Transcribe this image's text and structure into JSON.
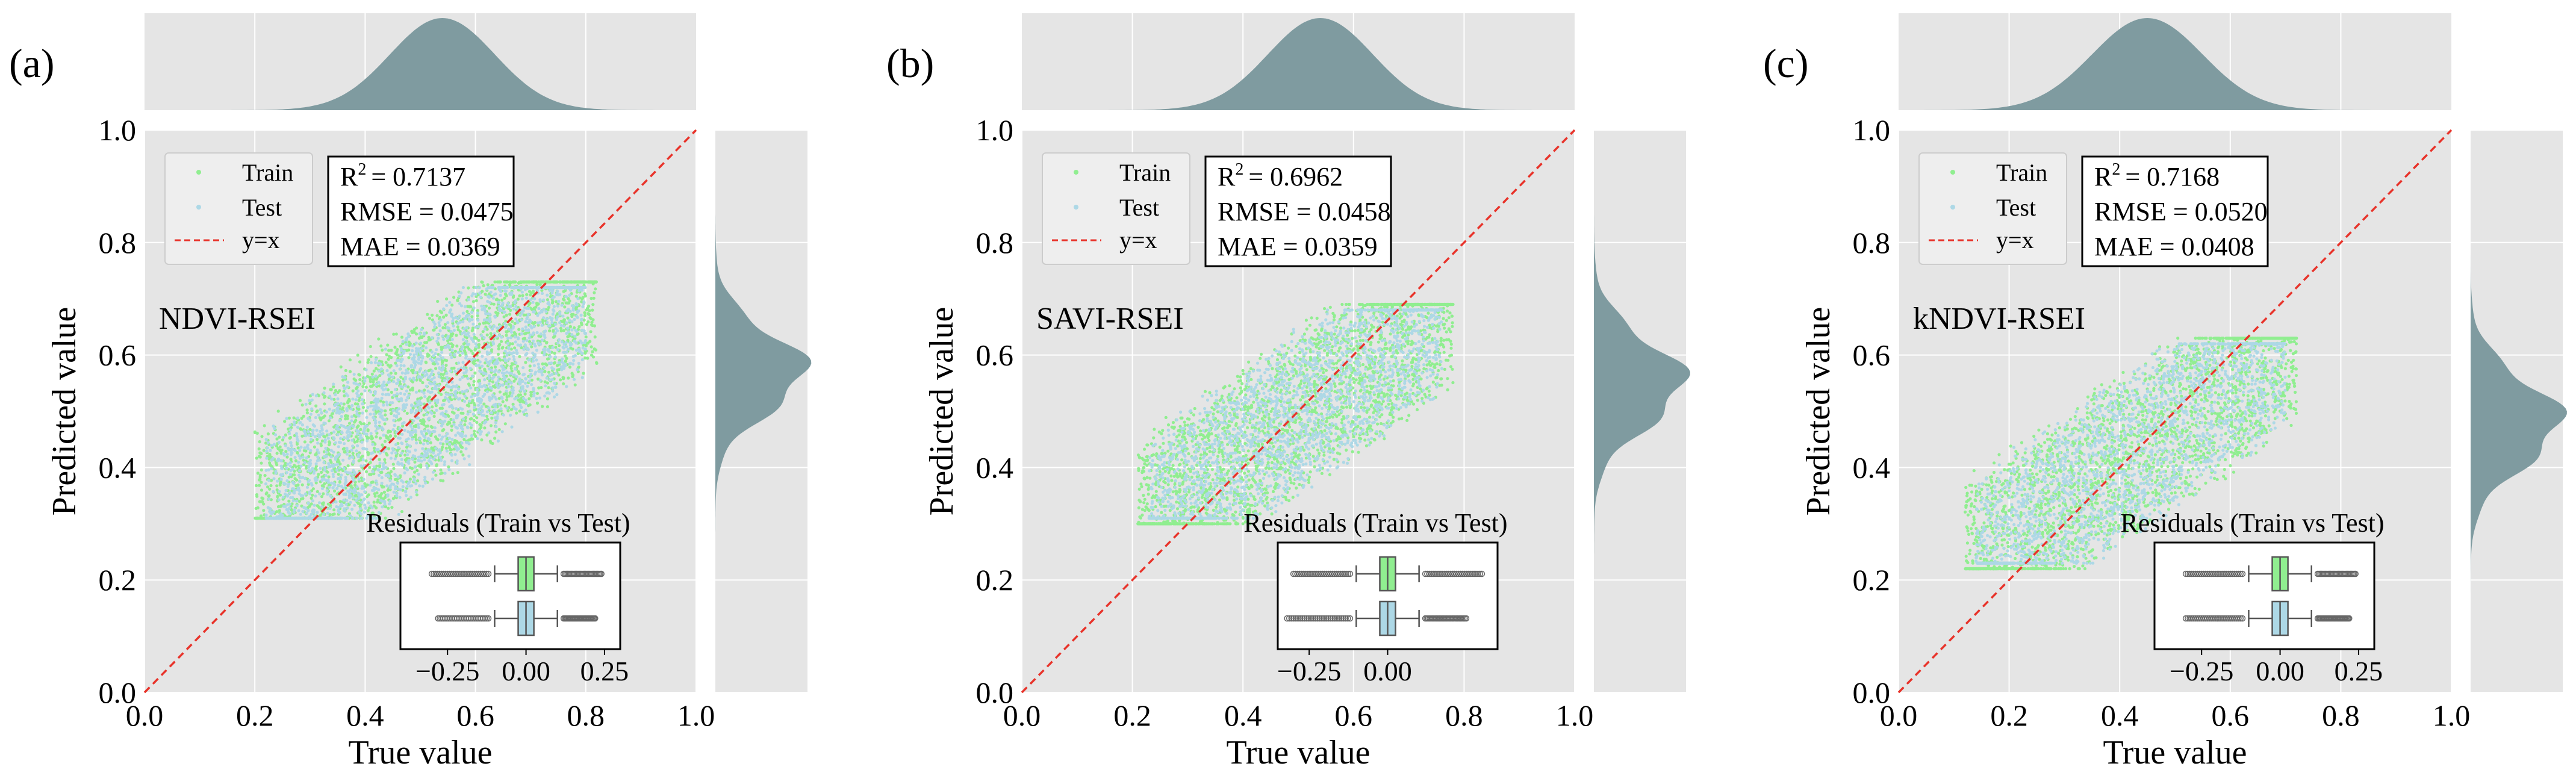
{
  "colors": {
    "plot_background": "#e5e5e5",
    "grid": "#ffffff",
    "train_points": "#90ee90",
    "test_points": "#add8e6",
    "identity_line": "#e8332a",
    "density_fill": "#7f9ba0",
    "box_train": "#90ee90",
    "box_test": "#add8e6",
    "box_edge": "#555555"
  },
  "legend": {
    "train": "Train",
    "test": "Test",
    "identity": "y=x"
  },
  "chart_data": [
    {
      "type": "scatter",
      "panel_label": "(a)",
      "name": "NDVI-RSEI",
      "xlabel": "True value",
      "ylabel": "Predicted value",
      "xlim": [
        0.0,
        1.0
      ],
      "ylim": [
        0.0,
        1.0
      ],
      "xticks": [
        "0.0",
        "0.2",
        "0.4",
        "0.6",
        "0.8",
        "1.0"
      ],
      "yticks": [
        "0.0",
        "0.2",
        "0.4",
        "0.6",
        "0.8",
        "1.0"
      ],
      "grid": true,
      "series": [
        {
          "name": "Train",
          "true_range": [
            0.2,
            0.82
          ],
          "pred_range": [
            0.31,
            0.73
          ]
        },
        {
          "name": "Test",
          "true_range": [
            0.22,
            0.8
          ],
          "pred_range": [
            0.31,
            0.72
          ]
        },
        {
          "name": "y=x",
          "x": [
            0.0,
            1.0
          ],
          "y": [
            0.0,
            1.0
          ]
        }
      ],
      "stats": {
        "r2_label": "R",
        "r2_value": "= 0.7137",
        "rmse": "RMSE = 0.0475",
        "mae": "MAE = 0.0369"
      },
      "top_density": {
        "peak": 0.54,
        "spread": 0.095
      },
      "right_density": {
        "peak": 0.57,
        "spread": 0.07
      },
      "residuals": {
        "title": "Residuals (Train vs Test)",
        "xlim": [
          -0.4,
          0.3
        ],
        "xticks": [
          "-0.25",
          "0.00",
          "0.25"
        ],
        "xtick_values": [
          -0.25,
          0.0,
          0.25
        ],
        "boxes": [
          {
            "name": "Train",
            "q1": -0.025,
            "median": 0.0,
            "q3": 0.025,
            "whisker_low": -0.1,
            "whisker_high": 0.1,
            "outlier_low": -0.3,
            "outlier_high": 0.24
          },
          {
            "name": "Test",
            "q1": -0.025,
            "median": 0.0,
            "q3": 0.025,
            "whisker_low": -0.1,
            "whisker_high": 0.1,
            "outlier_low": -0.28,
            "outlier_high": 0.22
          }
        ]
      }
    },
    {
      "type": "scatter",
      "panel_label": "(b)",
      "name": "SAVI-RSEI",
      "xlabel": "True value",
      "ylabel": "Predicted value",
      "xlim": [
        0.0,
        1.0
      ],
      "ylim": [
        0.0,
        1.0
      ],
      "xticks": [
        "0.0",
        "0.2",
        "0.4",
        "0.6",
        "0.8",
        "1.0"
      ],
      "yticks": [
        "0.0",
        "0.2",
        "0.4",
        "0.6",
        "0.8",
        "1.0"
      ],
      "grid": true,
      "series": [
        {
          "name": "Train",
          "true_range": [
            0.21,
            0.78
          ],
          "pred_range": [
            0.3,
            0.69
          ]
        },
        {
          "name": "Test",
          "true_range": [
            0.23,
            0.76
          ],
          "pred_range": [
            0.31,
            0.68
          ]
        },
        {
          "name": "y=x",
          "x": [
            0.0,
            1.0
          ],
          "y": [
            0.0,
            1.0
          ]
        }
      ],
      "stats": {
        "r2_label": "R",
        "r2_value": "= 0.6962",
        "rmse": "RMSE = 0.0458",
        "mae": "MAE = 0.0359"
      },
      "top_density": {
        "peak": 0.54,
        "spread": 0.095
      },
      "right_density": {
        "peak": 0.55,
        "spread": 0.075
      },
      "residuals": {
        "title": "Residuals (Train vs Test)",
        "xlim": [
          -0.35,
          0.35
        ],
        "xticks": [
          "-0.25",
          "0.00"
        ],
        "xtick_values": [
          -0.25,
          0.0
        ],
        "boxes": [
          {
            "name": "Train",
            "q1": -0.025,
            "median": 0.0,
            "q3": 0.025,
            "whisker_low": -0.1,
            "whisker_high": 0.1,
            "outlier_low": -0.3,
            "outlier_high": 0.3
          },
          {
            "name": "Test",
            "q1": -0.025,
            "median": 0.0,
            "q3": 0.025,
            "whisker_low": -0.1,
            "whisker_high": 0.1,
            "outlier_low": -0.32,
            "outlier_high": 0.25
          }
        ]
      }
    },
    {
      "type": "scatter",
      "panel_label": "(c)",
      "name": "kNDVI-RSEI",
      "xlabel": "True value",
      "ylabel": "Predicted value",
      "xlim": [
        0.0,
        1.0
      ],
      "ylim": [
        0.0,
        1.0
      ],
      "xticks": [
        "0.0",
        "0.2",
        "0.4",
        "0.6",
        "0.8",
        "1.0"
      ],
      "yticks": [
        "0.0",
        "0.2",
        "0.4",
        "0.6",
        "0.8",
        "1.0"
      ],
      "grid": true,
      "series": [
        {
          "name": "Train",
          "true_range": [
            0.12,
            0.72
          ],
          "pred_range": [
            0.22,
            0.63
          ]
        },
        {
          "name": "Test",
          "true_range": [
            0.14,
            0.7
          ],
          "pred_range": [
            0.23,
            0.62
          ]
        },
        {
          "name": "y=x",
          "x": [
            0.0,
            1.0
          ],
          "y": [
            0.0,
            1.0
          ]
        }
      ],
      "stats": {
        "r2_label": "R",
        "r2_value": "= 0.7168",
        "rmse": "RMSE = 0.0520",
        "mae": "MAE =  0.0408"
      },
      "top_density": {
        "peak": 0.45,
        "spread": 0.1
      },
      "right_density": {
        "peak": 0.48,
        "spread": 0.075
      },
      "residuals": {
        "title": "Residuals (Train vs Test)",
        "xlim": [
          -0.4,
          0.3
        ],
        "xticks": [
          "-0.25",
          "0.00",
          "0.25"
        ],
        "xtick_values": [
          -0.25,
          0.0,
          0.25
        ],
        "boxes": [
          {
            "name": "Train",
            "q1": -0.025,
            "median": 0.0,
            "q3": 0.025,
            "whisker_low": -0.1,
            "whisker_high": 0.1,
            "outlier_low": -0.3,
            "outlier_high": 0.24
          },
          {
            "name": "Test",
            "q1": -0.025,
            "median": 0.0,
            "q3": 0.025,
            "whisker_low": -0.1,
            "whisker_high": 0.1,
            "outlier_low": -0.3,
            "outlier_high": 0.22
          }
        ]
      }
    }
  ]
}
